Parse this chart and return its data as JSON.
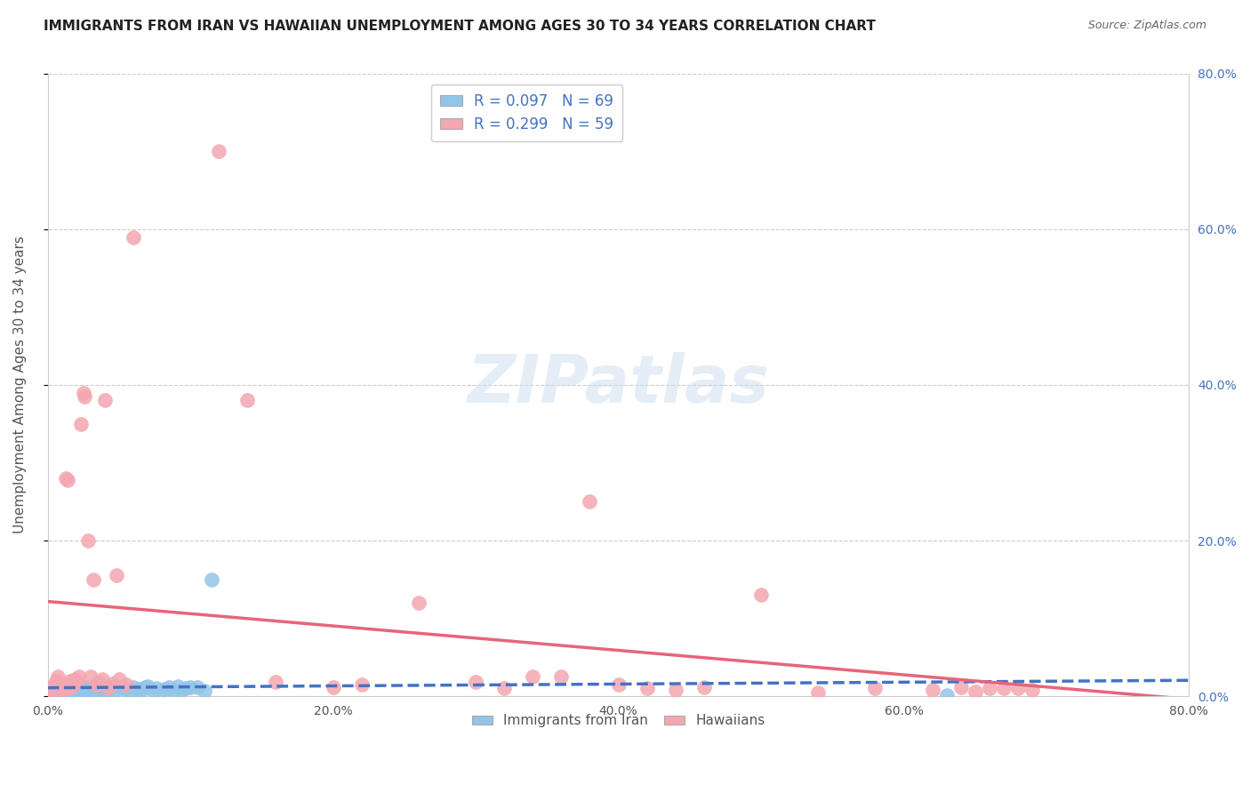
{
  "title": "IMMIGRANTS FROM IRAN VS HAWAIIAN UNEMPLOYMENT AMONG AGES 30 TO 34 YEARS CORRELATION CHART",
  "source": "Source: ZipAtlas.com",
  "ylabel": "Unemployment Among Ages 30 to 34 years",
  "xlim": [
    0.0,
    0.8
  ],
  "ylim": [
    0.0,
    0.8
  ],
  "xticks": [
    0.0,
    0.2,
    0.4,
    0.6,
    0.8
  ],
  "yticks": [
    0.0,
    0.2,
    0.4,
    0.6,
    0.8
  ],
  "xticklabels": [
    "0.0%",
    "20.0%",
    "40.0%",
    "60.0%",
    "80.0%"
  ],
  "yticklabels": [
    "0.0%",
    "20.0%",
    "40.0%",
    "60.0%",
    "80.0%"
  ],
  "legend_labels": [
    "Immigrants from Iran",
    "Hawaiians"
  ],
  "R_blue": 0.097,
  "N_blue": 69,
  "R_pink": 0.299,
  "N_pink": 59,
  "blue_color": "#92C5E8",
  "pink_color": "#F4A7B0",
  "blue_line_color": "#4472C4",
  "pink_line_color": "#E8647A",
  "blue_scatter_x": [
    0.001,
    0.002,
    0.002,
    0.003,
    0.003,
    0.004,
    0.004,
    0.005,
    0.005,
    0.006,
    0.006,
    0.007,
    0.007,
    0.008,
    0.009,
    0.01,
    0.01,
    0.011,
    0.012,
    0.013,
    0.013,
    0.014,
    0.015,
    0.016,
    0.017,
    0.018,
    0.019,
    0.02,
    0.021,
    0.022,
    0.023,
    0.024,
    0.025,
    0.026,
    0.027,
    0.028,
    0.03,
    0.031,
    0.033,
    0.035,
    0.037,
    0.039,
    0.041,
    0.043,
    0.045,
    0.047,
    0.05,
    0.052,
    0.055,
    0.058,
    0.06,
    0.063,
    0.065,
    0.068,
    0.07,
    0.073,
    0.076,
    0.079,
    0.082,
    0.085,
    0.088,
    0.091,
    0.094,
    0.097,
    0.1,
    0.105,
    0.11,
    0.115,
    0.63
  ],
  "blue_scatter_y": [
    0.01,
    0.008,
    0.012,
    0.006,
    0.01,
    0.005,
    0.009,
    0.007,
    0.011,
    0.008,
    0.012,
    0.009,
    0.014,
    0.01,
    0.006,
    0.008,
    0.013,
    0.01,
    0.007,
    0.009,
    0.014,
    0.006,
    0.011,
    0.008,
    0.013,
    0.007,
    0.01,
    0.006,
    0.009,
    0.012,
    0.007,
    0.011,
    0.009,
    0.013,
    0.007,
    0.01,
    0.008,
    0.012,
    0.007,
    0.01,
    0.008,
    0.012,
    0.006,
    0.009,
    0.011,
    0.007,
    0.01,
    0.013,
    0.008,
    0.006,
    0.012,
    0.009,
    0.007,
    0.011,
    0.013,
    0.008,
    0.01,
    0.006,
    0.009,
    0.012,
    0.007,
    0.013,
    0.008,
    0.01,
    0.012,
    0.011,
    0.007,
    0.15,
    0.001
  ],
  "pink_scatter_x": [
    0.001,
    0.002,
    0.003,
    0.005,
    0.006,
    0.007,
    0.008,
    0.009,
    0.01,
    0.011,
    0.013,
    0.014,
    0.015,
    0.016,
    0.018,
    0.019,
    0.02,
    0.022,
    0.023,
    0.025,
    0.026,
    0.028,
    0.03,
    0.032,
    0.034,
    0.036,
    0.038,
    0.04,
    0.042,
    0.045,
    0.048,
    0.05,
    0.055,
    0.06,
    0.12,
    0.14,
    0.16,
    0.2,
    0.22,
    0.26,
    0.3,
    0.32,
    0.34,
    0.36,
    0.38,
    0.4,
    0.42,
    0.44,
    0.46,
    0.5,
    0.54,
    0.58,
    0.62,
    0.64,
    0.65,
    0.66,
    0.67,
    0.68,
    0.69
  ],
  "pink_scatter_y": [
    0.005,
    0.01,
    0.008,
    0.013,
    0.02,
    0.025,
    0.015,
    0.01,
    0.008,
    0.012,
    0.28,
    0.278,
    0.02,
    0.01,
    0.015,
    0.022,
    0.018,
    0.025,
    0.35,
    0.39,
    0.385,
    0.2,
    0.025,
    0.15,
    0.015,
    0.018,
    0.022,
    0.38,
    0.01,
    0.016,
    0.155,
    0.022,
    0.015,
    0.59,
    0.7,
    0.38,
    0.018,
    0.012,
    0.015,
    0.12,
    0.018,
    0.01,
    0.025,
    0.025,
    0.25,
    0.015,
    0.01,
    0.008,
    0.012,
    0.13,
    0.005,
    0.01,
    0.008,
    0.012,
    0.006,
    0.01,
    0.01,
    0.01,
    0.008
  ]
}
